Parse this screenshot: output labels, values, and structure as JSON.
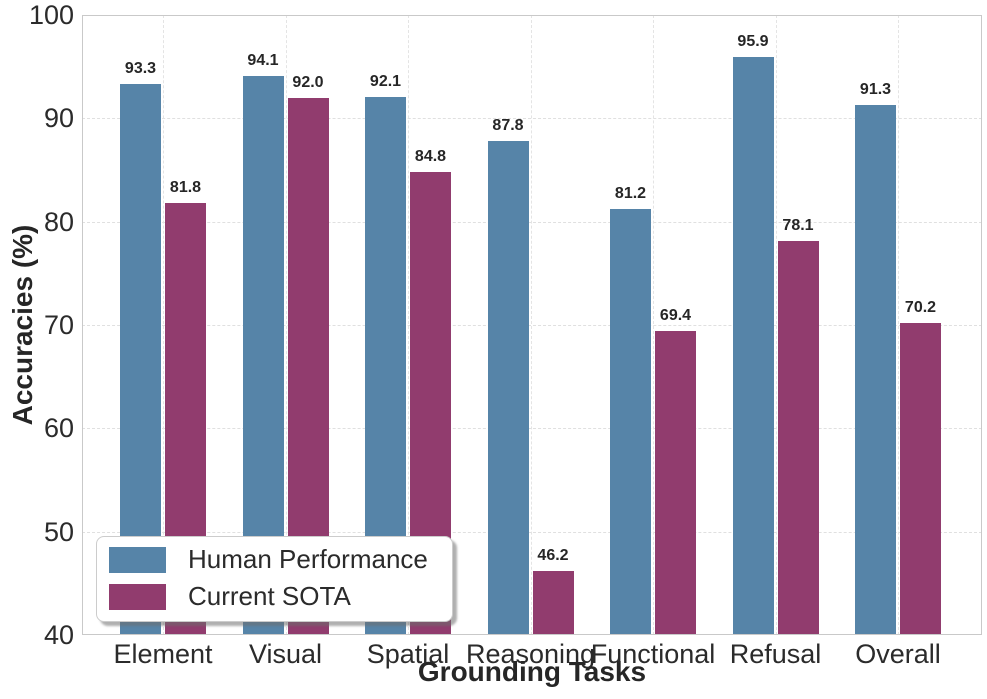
{
  "chart_data": {
    "type": "bar",
    "categories": [
      "Element",
      "Visual",
      "Spatial",
      "Reasoning",
      "Functional",
      "Refusal",
      "Overall"
    ],
    "series": [
      {
        "name": "Human Performance",
        "color": "#5684a8",
        "values": [
          93.3,
          94.1,
          92.1,
          87.8,
          81.2,
          95.9,
          91.3
        ]
      },
      {
        "name": "Current SOTA",
        "color": "#913c6e",
        "values": [
          81.8,
          92.0,
          84.8,
          46.2,
          69.4,
          78.1,
          70.2
        ]
      }
    ],
    "xlabel": "Grounding Tasks",
    "ylabel": "Accuracies (%)",
    "ylim": [
      40,
      100
    ],
    "yticks": [
      40,
      50,
      60,
      70,
      80,
      90,
      100
    ],
    "grid": {
      "horizontal": true,
      "vertical": true,
      "style": "dashed"
    },
    "legend_position": "lower-left",
    "value_labels": "one-decimal-above-bars"
  },
  "style_colors": {
    "bar_blue": "#5684a8",
    "bar_purple": "#913c6e",
    "text": "#2b2b2b",
    "spine": "#c9c9c9",
    "grid_line": "#e0e0e0",
    "legend_border": "#cccccc",
    "background": "#ffffff"
  }
}
